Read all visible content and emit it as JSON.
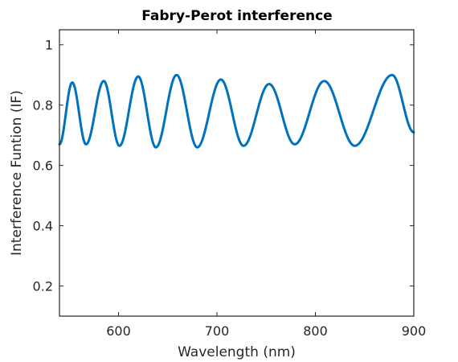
{
  "chart_data": {
    "type": "line",
    "title": "Fabry-Perot interference",
    "xlabel": "Wavelength (nm)",
    "ylabel": "Interference Funtion (IF)",
    "xlim": [
      540,
      900
    ],
    "ylim": [
      0.1,
      1.05
    ],
    "xticks": [
      600,
      700,
      800,
      900
    ],
    "yticks": [
      0.2,
      0.4,
      0.6,
      0.8,
      1
    ],
    "xtick_labels": [
      "600",
      "700",
      "800",
      "900"
    ],
    "ytick_labels": [
      "0.2",
      "0.4",
      "0.6",
      "0.8",
      "1"
    ],
    "grid": false,
    "series": [
      {
        "color": "#0072BD",
        "extrema": [
          [
            540,
            0.67
          ],
          [
            553,
            0.875
          ],
          [
            567,
            0.67
          ],
          [
            585,
            0.88
          ],
          [
            601,
            0.665
          ],
          [
            620,
            0.895
          ],
          [
            638,
            0.66
          ],
          [
            659,
            0.9
          ],
          [
            680,
            0.66
          ],
          [
            704,
            0.885
          ],
          [
            727,
            0.665
          ],
          [
            753,
            0.87
          ],
          [
            779,
            0.67
          ],
          [
            809,
            0.88
          ],
          [
            840,
            0.665
          ],
          [
            878,
            0.9
          ],
          [
            900,
            0.71
          ]
        ]
      }
    ]
  }
}
